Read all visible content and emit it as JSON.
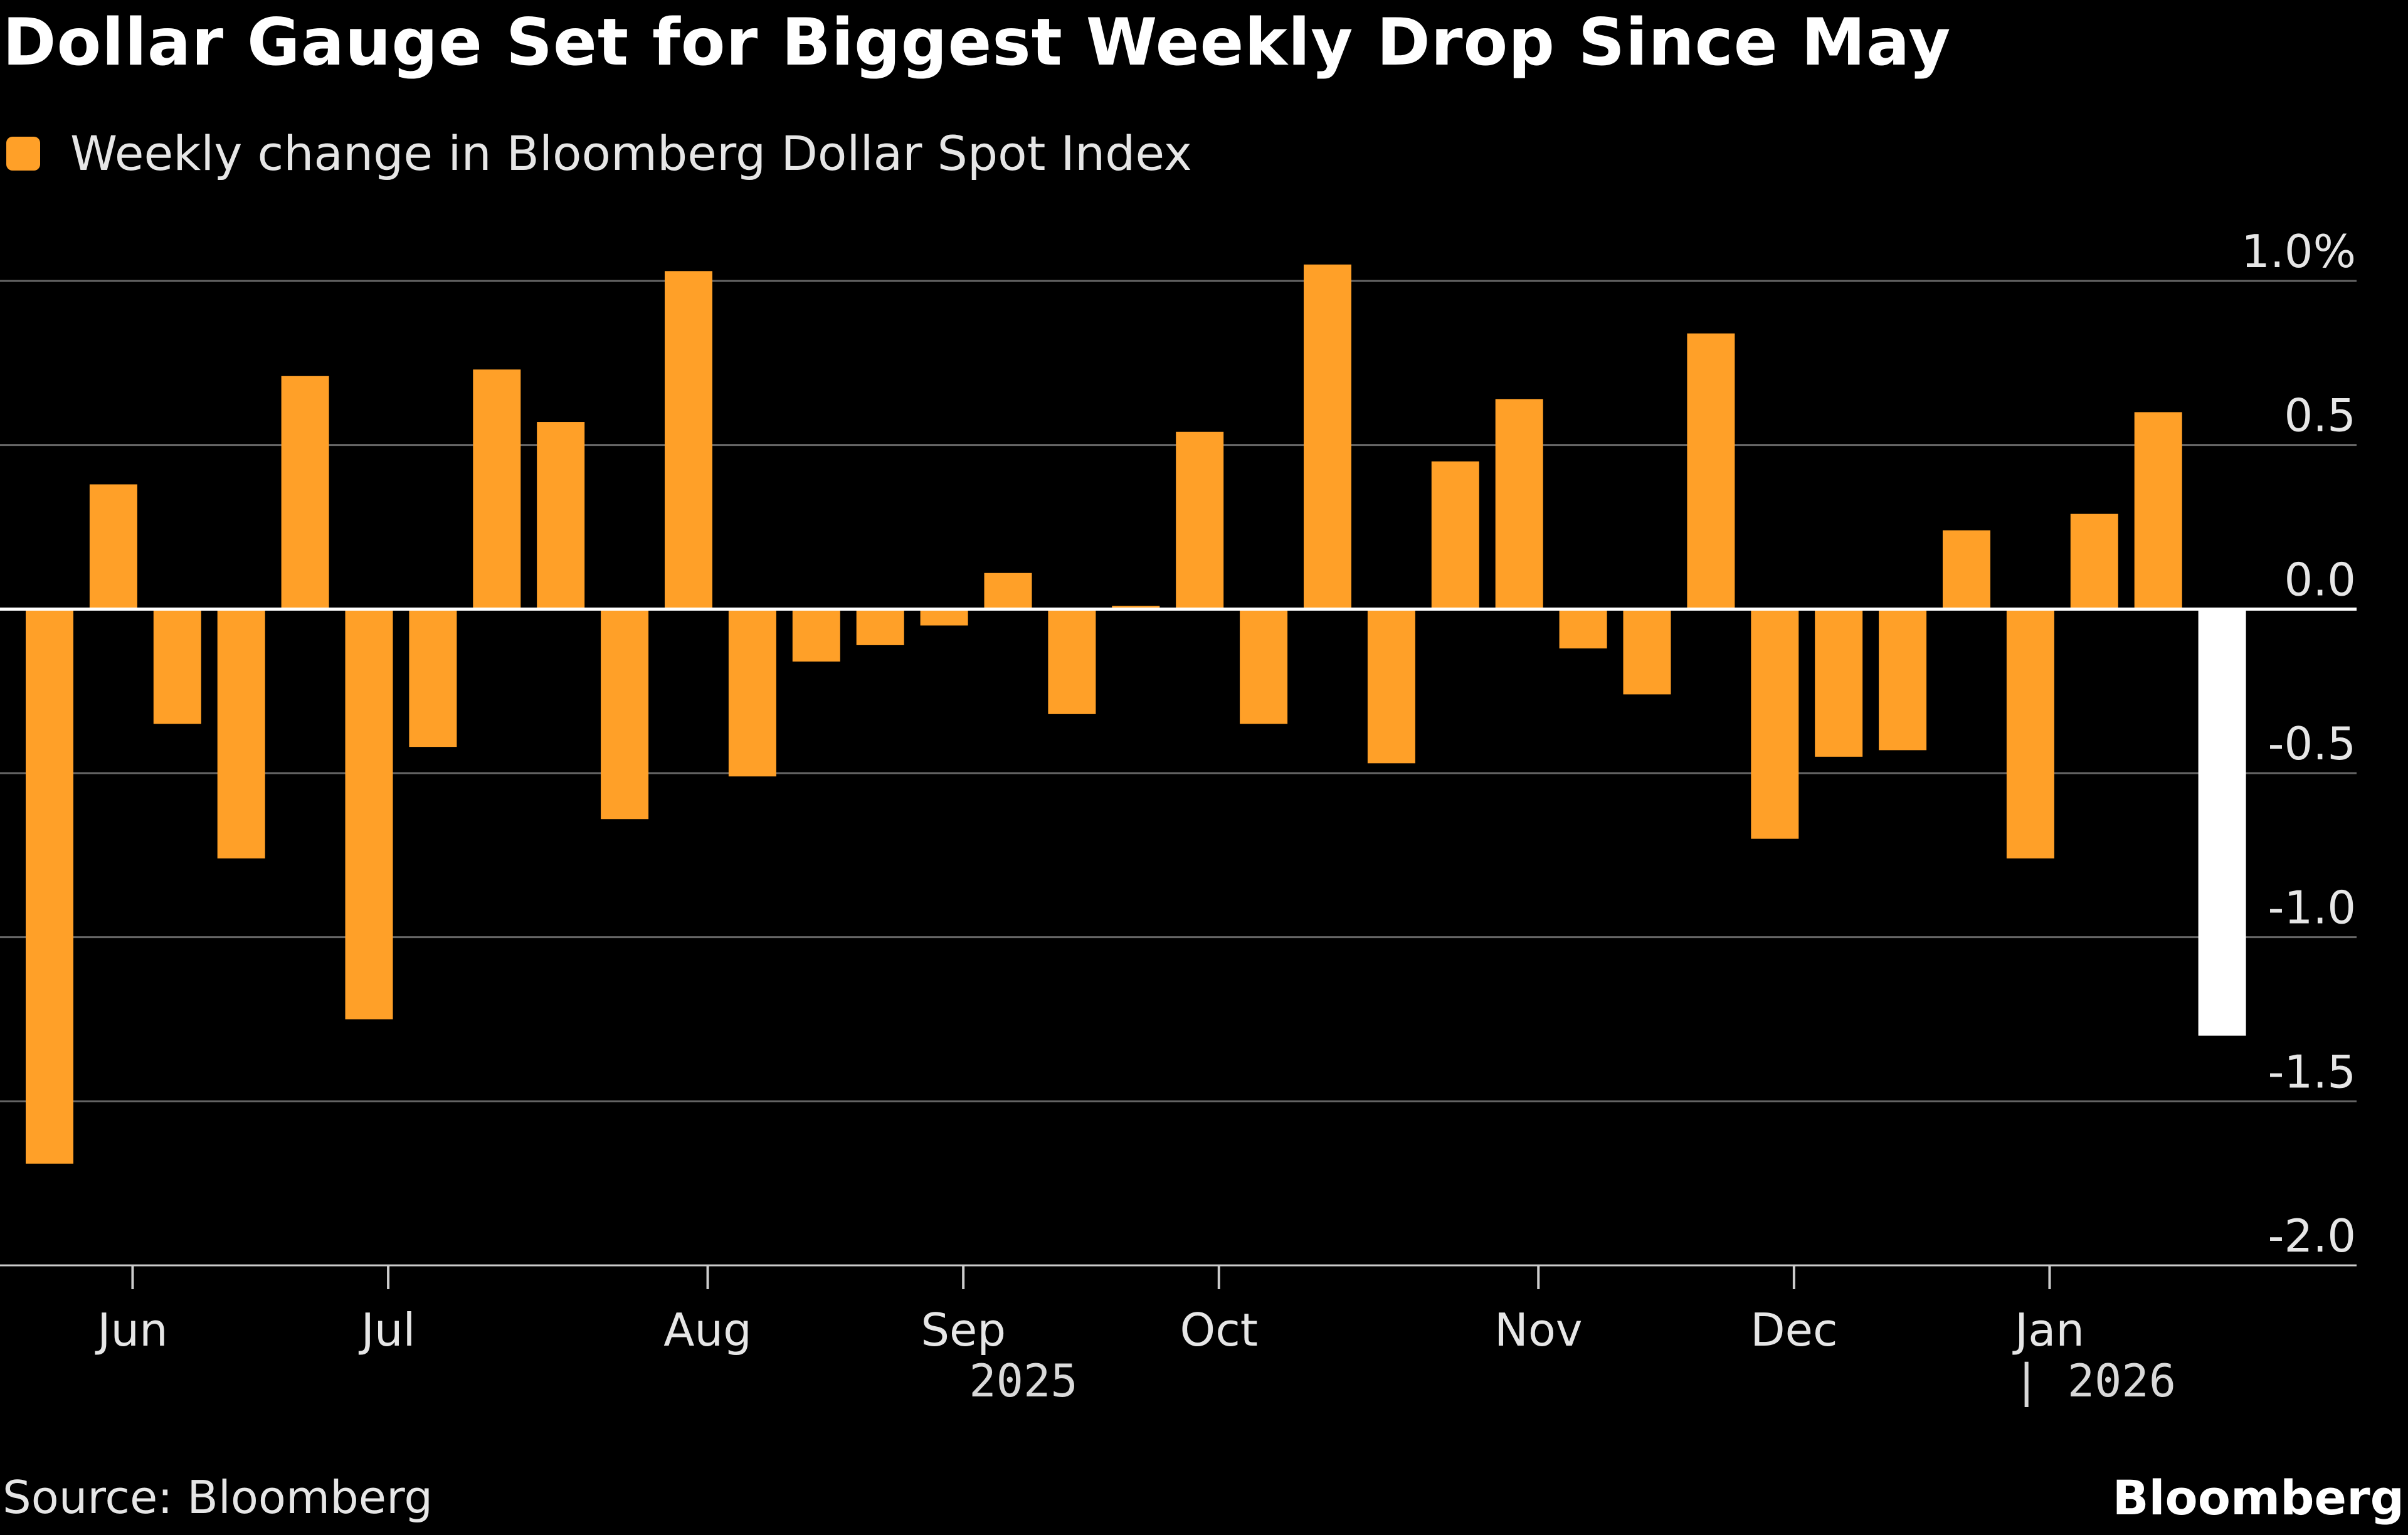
{
  "title": "Dollar Gauge Set for Biggest Weekly Drop Since May",
  "legend": {
    "label": "Weekly change in Bloomberg Dollar Spot Index",
    "color": "#ffa028"
  },
  "source": "Source: Bloomberg",
  "brand": "Bloomberg",
  "colors": {
    "bar": "#ffa028",
    "highlight": "#ffffff",
    "grid": "#666666",
    "background": "#000000"
  },
  "chart_data": {
    "type": "bar",
    "series": [
      {
        "name": "Weekly change in Bloomberg Dollar Spot Index",
        "values": [
          -1.69,
          0.38,
          -0.35,
          -0.76,
          0.71,
          -1.25,
          -0.42,
          0.73,
          0.57,
          -0.64,
          1.03,
          -0.51,
          -0.16,
          -0.11,
          -0.05,
          0.11,
          -0.32,
          0.01,
          0.54,
          -0.35,
          1.05,
          -0.47,
          0.45,
          0.64,
          -0.12,
          -0.26,
          0.84,
          -0.7,
          -0.45,
          -0.43,
          0.24,
          -0.76,
          0.29,
          0.6,
          -1.3
        ]
      }
    ],
    "highlight_index": 34,
    "ylim": [
      -2.0,
      1.0
    ],
    "y_ticks": [
      "1.0%",
      "0.5",
      "0.0",
      "-0.5",
      "-1.0",
      "-1.5",
      "-2.0"
    ],
    "x_ticks": [
      {
        "label": "Jun",
        "pos": 1.3
      },
      {
        "label": "Jul",
        "pos": 5.3
      },
      {
        "label": "Aug",
        "pos": 10.3
      },
      {
        "label": "Sep",
        "pos": 14.3
      },
      {
        "label": "Oct",
        "pos": 18.3
      },
      {
        "label": "Nov",
        "pos": 23.3
      },
      {
        "label": "Dec",
        "pos": 27.3
      },
      {
        "label": "Jan",
        "pos": 31.3
      }
    ],
    "year_labels": [
      "2025",
      "| 2026"
    ],
    "grid": true,
    "legend_position": "top-left"
  }
}
